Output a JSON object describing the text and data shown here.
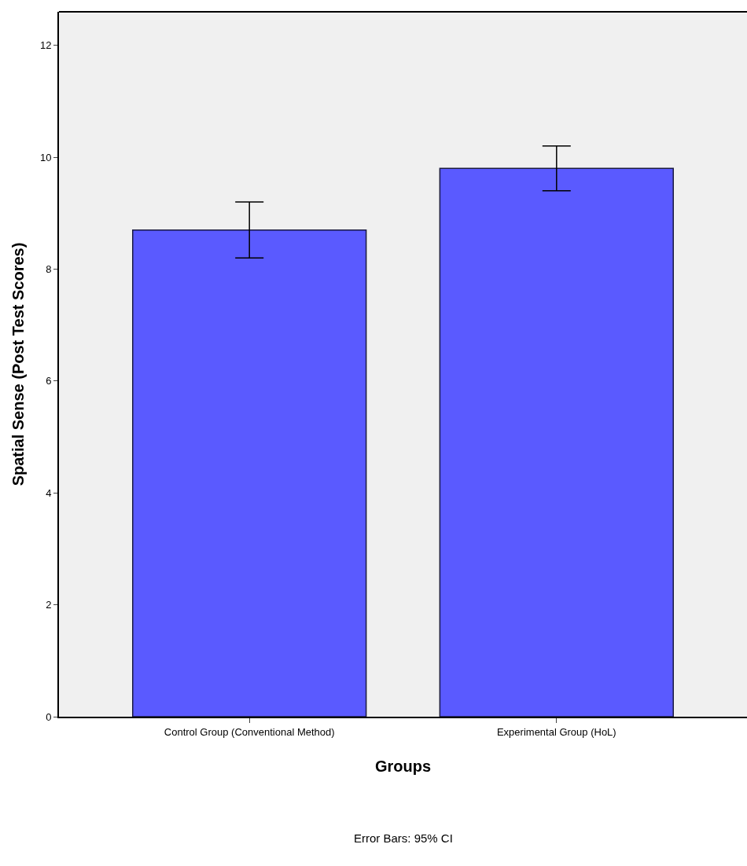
{
  "chart_data": {
    "type": "bar",
    "xlabel": "Groups",
    "ylabel": "Spatial Sense (Post Test Scores)",
    "categories": [
      "Control Group (Conventional Method)",
      "Experimental Group (HoL)"
    ],
    "values": [
      8.7,
      9.8
    ],
    "errors": [
      [
        8.2,
        9.2
      ],
      [
        9.4,
        10.2
      ]
    ],
    "color": "#5a5aff",
    "ylim": [
      0,
      12.6
    ],
    "yticks": [
      0,
      2,
      4,
      6,
      8,
      10,
      12
    ],
    "grid": false,
    "legend": false,
    "annotations": [
      "Error Bars: 95% CI"
    ]
  }
}
